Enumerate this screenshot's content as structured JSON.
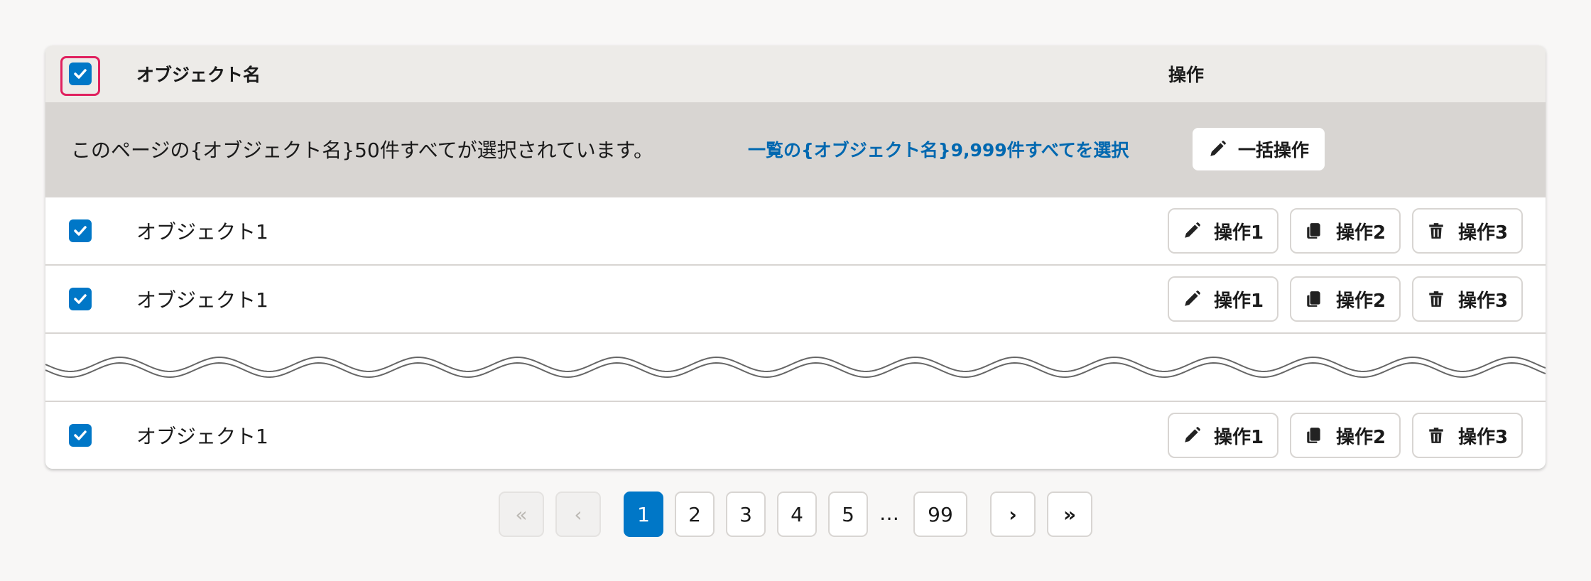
{
  "header": {
    "name_col": "オブジェクト名",
    "actions_col": "操作",
    "select_all_checked": true
  },
  "banner": {
    "message": "このページの{オブジェクト名}50件すべてが選択されています。",
    "select_all_link": "一覧の{オブジェクト名}9,999件すべてを選択",
    "bulk_button": "一括操作",
    "bulk_icon": "pencil-icon"
  },
  "rows": [
    {
      "name": "オブジェクト1",
      "checked": true
    },
    {
      "name": "オブジェクト1",
      "checked": true
    },
    {
      "name": "オブジェクト1",
      "checked": true
    }
  ],
  "actions": [
    {
      "label": "操作1",
      "icon": "pencil-icon"
    },
    {
      "label": "操作2",
      "icon": "copy-icon"
    },
    {
      "label": "操作3",
      "icon": "trash-icon"
    }
  ],
  "pagination": {
    "pages": [
      "1",
      "2",
      "3",
      "4",
      "5",
      "99"
    ],
    "current": "1",
    "ellipsis": "…"
  },
  "colors": {
    "accent": "#0077c7",
    "focus": "#e0215f",
    "link": "#0068b0",
    "banner": "#d8d5d2",
    "header": "#edebe8"
  }
}
